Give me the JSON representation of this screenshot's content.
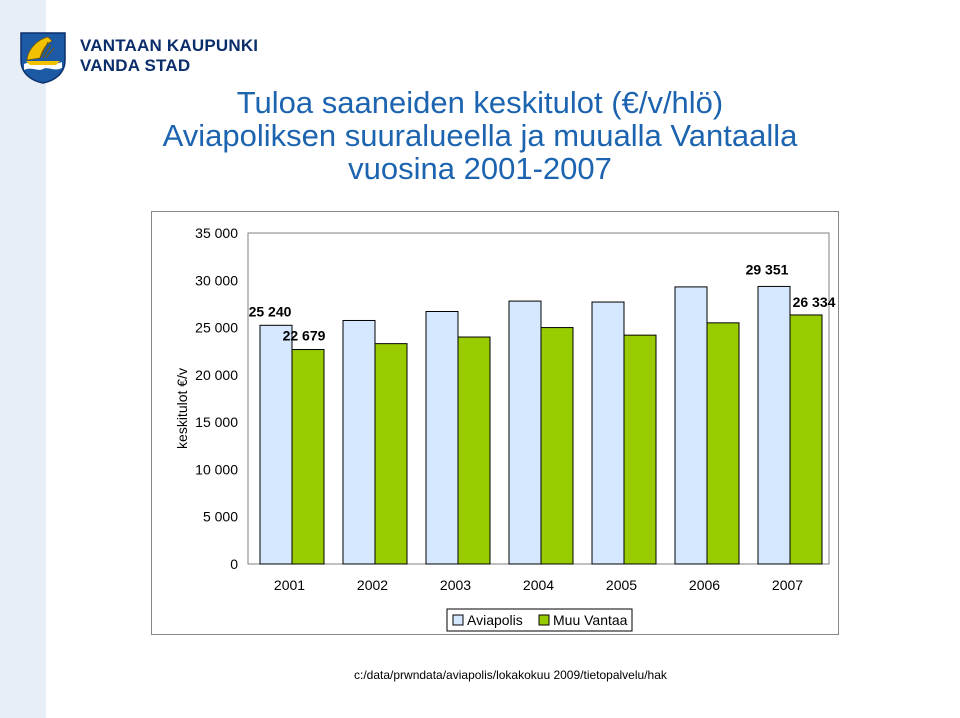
{
  "header": {
    "brand_line1": "VANTAAN KAUPUNKI",
    "brand_line2": "VANDA STAD"
  },
  "title": {
    "line1": "Tuloa saaneiden keskitulot (€/v/hlö)",
    "line2": "Aviapoliksen suuralueella ja muualla Vantaalla",
    "line3": "vuosina 2001-2007"
  },
  "footer": "c:/data/prwndata/aviapolis/lokakokuu 2009/tietopalvelu/hak",
  "colors": {
    "aviapolis": "#d5e8ff",
    "muu_vantaa": "#99cc00",
    "title": "#1d64b0",
    "brand": "#0b2e6b"
  },
  "chart_data": {
    "type": "bar",
    "categories": [
      "2001",
      "2002",
      "2003",
      "2004",
      "2005",
      "2006",
      "2007"
    ],
    "series": [
      {
        "name": "Aviapolis",
        "values": [
          25240,
          25750,
          26700,
          27800,
          27700,
          29300,
          29351
        ]
      },
      {
        "name": "Muu Vantaa",
        "values": [
          22679,
          23300,
          24000,
          25000,
          24200,
          25500,
          26334
        ]
      }
    ],
    "data_labels": [
      {
        "series": 0,
        "index": 0,
        "text": "25 240"
      },
      {
        "series": 1,
        "index": 0,
        "text": "22 679"
      },
      {
        "series": 0,
        "index": 6,
        "text": "29 351"
      },
      {
        "series": 1,
        "index": 6,
        "text": "26 334"
      }
    ],
    "ylabel": "keskitulot €/v",
    "xlabel": "",
    "ylim": [
      0,
      35000
    ],
    "yticks": [
      0,
      5000,
      10000,
      15000,
      20000,
      25000,
      30000,
      35000
    ],
    "ytick_labels": [
      "0",
      "5 000",
      "10 000",
      "15 000",
      "20 000",
      "25 000",
      "30 000",
      "35 000"
    ],
    "grid": false,
    "legend_position": "bottom"
  }
}
